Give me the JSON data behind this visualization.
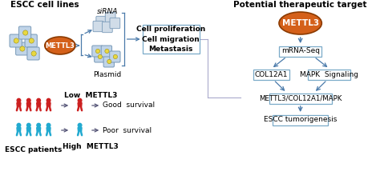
{
  "bg_color": "#ffffff",
  "title_right": "Potential therapeutic target",
  "mettl3_fill": "#d4601a",
  "mettl3_edge": "#8b3a00",
  "box_edge": "#7aaac8",
  "box_fill": "#ffffff",
  "arrow_color": "#4a7aaa",
  "dark_arrow": "#555577",
  "red_person": "#cc2020",
  "blue_person": "#22aad0",
  "cell_fill": "#c0d4e8",
  "cell_edge": "#7899b8",
  "nucleus_fill": "#e8d840",
  "left_title": "ESCC cell lines",
  "sirna_label": "siRNA",
  "plasmid_label": "Plasmid",
  "box_right_text": "Cell proliferation\nCell migration\nMetastasis",
  "mrna_label": "mRNA-Seq",
  "col12a1_label": "COL12A1",
  "mapk_label": "MAPK  Signaling",
  "combo_label": "METTL3/COL12A1/MAPK",
  "escc_tumor_label": "ESCC tumorigenesis",
  "low_mettl3": "Low  METTL3",
  "high_mettl3": "High  METTL3",
  "good_survival": "Good  survival",
  "poor_survival": "Poor  survival",
  "escc_patients": "ESCC patients",
  "connector_color": "#aaaacc"
}
